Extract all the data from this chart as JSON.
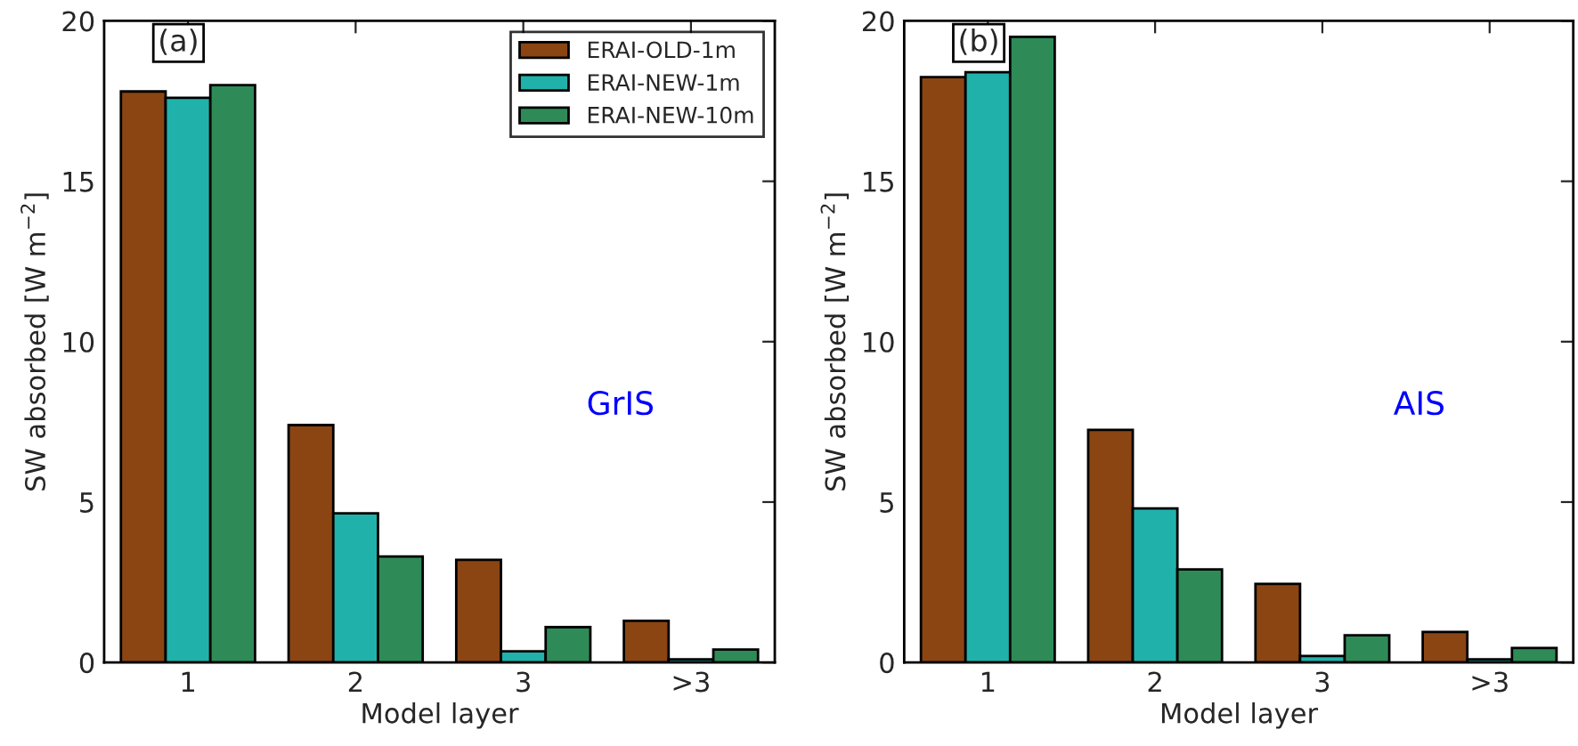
{
  "chart_data": [
    {
      "type": "bar",
      "xlabel": "Model layer",
      "ylabel": "SW absorbed [W m$^{−2}$]",
      "categories": [
        "1",
        "2",
        "3",
        ">3"
      ],
      "ylim": [
        0,
        20
      ],
      "yticks": [
        0,
        5,
        10,
        15,
        20
      ],
      "legend": "top right",
      "annotations": [
        "(a)",
        "GrIS"
      ],
      "series": [
        {
          "name": "ERAI-OLD-1m",
          "color": "#8b4513",
          "values": [
            17.8,
            7.4,
            3.2,
            1.3
          ]
        },
        {
          "name": "ERAI-NEW-1m",
          "color": "#20b2aa",
          "values": [
            17.6,
            4.65,
            0.35,
            0.1
          ]
        },
        {
          "name": "ERAI-NEW-10m",
          "color": "#2e8b57",
          "values": [
            18.0,
            3.3,
            1.1,
            0.4
          ]
        }
      ]
    },
    {
      "type": "bar",
      "xlabel": "Model layer",
      "ylabel": "SW absorbed [W m$^{−2}$]",
      "categories": [
        "1",
        "2",
        "3",
        ">3"
      ],
      "ylim": [
        0,
        20
      ],
      "yticks": [
        0,
        5,
        10,
        15,
        20
      ],
      "annotations": [
        "(b)",
        "AIS"
      ],
      "series": [
        {
          "color": "#8b4513",
          "values": [
            18.25,
            7.25,
            2.45,
            0.95
          ]
        },
        {
          "color": "#20b2aa",
          "values": [
            18.4,
            4.8,
            0.2,
            0.1
          ]
        },
        {
          "color": "#2e8b57",
          "values": [
            19.5,
            2.9,
            0.85,
            0.45
          ]
        }
      ]
    }
  ]
}
